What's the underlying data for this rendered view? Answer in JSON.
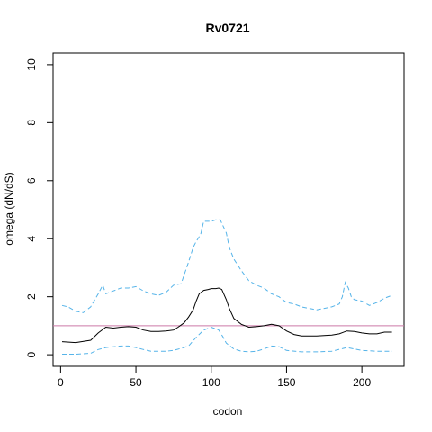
{
  "chart_data": {
    "type": "line",
    "title": "Rv0721",
    "xlabel": "codon",
    "ylabel": "omega (dN/dS)",
    "xlim": [
      -5,
      228
    ],
    "ylim": [
      -0.4,
      10.4
    ],
    "xticks": [
      0,
      50,
      100,
      150,
      200
    ],
    "yticks": [
      0,
      2,
      4,
      6,
      8,
      10
    ],
    "grid": false,
    "reference_line": {
      "y": 1,
      "color": "#cc79a7"
    },
    "series": [
      {
        "role": "estimate",
        "color": "#000000",
        "linestyle": "solid",
        "x": [
          1,
          10,
          20,
          25,
          30,
          35,
          40,
          45,
          50,
          55,
          60,
          65,
          70,
          75,
          78,
          82,
          85,
          88,
          90,
          92,
          95,
          98,
          100,
          103,
          105,
          107,
          110,
          112,
          115,
          120,
          125,
          130,
          135,
          140,
          145,
          150,
          155,
          160,
          170,
          180,
          185,
          190,
          195,
          200,
          205,
          210,
          215,
          220
        ],
        "y": [
          0.45,
          0.42,
          0.5,
          0.75,
          0.95,
          0.92,
          0.95,
          0.97,
          0.95,
          0.85,
          0.8,
          0.8,
          0.82,
          0.85,
          0.95,
          1.1,
          1.3,
          1.55,
          1.85,
          2.1,
          2.22,
          2.25,
          2.28,
          2.28,
          2.3,
          2.25,
          1.9,
          1.6,
          1.25,
          1.05,
          0.95,
          0.97,
          1.0,
          1.05,
          1.0,
          0.82,
          0.7,
          0.65,
          0.65,
          0.68,
          0.72,
          0.82,
          0.8,
          0.75,
          0.72,
          0.72,
          0.78,
          0.78
        ]
      },
      {
        "role": "upper bound",
        "color": "#56b4e9",
        "linestyle": "dashed",
        "x": [
          1,
          5,
          10,
          15,
          20,
          25,
          28,
          30,
          35,
          40,
          45,
          50,
          55,
          60,
          65,
          70,
          75,
          80,
          85,
          88,
          90,
          93,
          95,
          98,
          100,
          103,
          106,
          110,
          112,
          115,
          120,
          125,
          130,
          135,
          140,
          145,
          150,
          155,
          160,
          165,
          170,
          175,
          180,
          185,
          187,
          189,
          191,
          193,
          195,
          200,
          205,
          210,
          215,
          220
        ],
        "y": [
          1.7,
          1.65,
          1.5,
          1.45,
          1.65,
          2.1,
          2.4,
          2.1,
          2.2,
          2.3,
          2.3,
          2.35,
          2.2,
          2.1,
          2.05,
          2.15,
          2.4,
          2.45,
          3.2,
          3.7,
          3.9,
          4.15,
          4.6,
          4.6,
          4.6,
          4.65,
          4.65,
          4.2,
          3.7,
          3.3,
          2.9,
          2.55,
          2.4,
          2.3,
          2.1,
          2.0,
          1.8,
          1.75,
          1.65,
          1.6,
          1.55,
          1.6,
          1.65,
          1.75,
          2.0,
          2.5,
          2.3,
          2.0,
          1.9,
          1.85,
          1.7,
          1.8,
          1.95,
          2.05
        ]
      },
      {
        "role": "lower bound",
        "color": "#56b4e9",
        "linestyle": "dashed",
        "x": [
          1,
          10,
          20,
          25,
          30,
          40,
          45,
          50,
          55,
          60,
          70,
          75,
          80,
          85,
          90,
          95,
          100,
          105,
          108,
          110,
          115,
          120,
          125,
          130,
          135,
          140,
          145,
          150,
          160,
          170,
          180,
          190,
          195,
          200,
          210,
          215,
          220
        ],
        "y": [
          0.02,
          0.02,
          0.05,
          0.18,
          0.25,
          0.3,
          0.3,
          0.25,
          0.18,
          0.12,
          0.12,
          0.15,
          0.22,
          0.3,
          0.6,
          0.85,
          0.95,
          0.85,
          0.6,
          0.4,
          0.2,
          0.12,
          0.1,
          0.12,
          0.2,
          0.3,
          0.28,
          0.15,
          0.1,
          0.1,
          0.12,
          0.25,
          0.2,
          0.15,
          0.12,
          0.12,
          0.12
        ]
      }
    ]
  }
}
